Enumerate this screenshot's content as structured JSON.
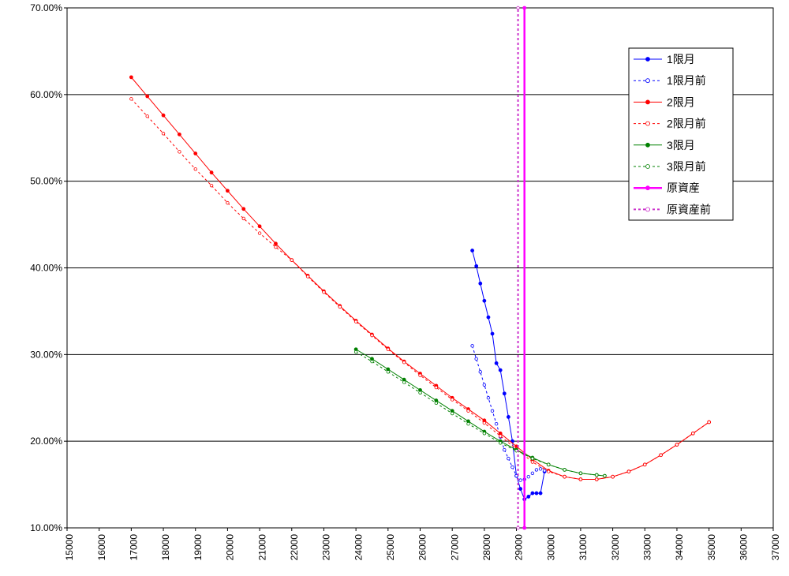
{
  "chart_data": {
    "type": "line",
    "xlim": [
      15000,
      37000
    ],
    "xticks": [
      15000,
      16000,
      17000,
      18000,
      19000,
      20000,
      21000,
      22000,
      23000,
      24000,
      25000,
      26000,
      27000,
      28000,
      29000,
      30000,
      31000,
      32000,
      33000,
      34000,
      35000,
      36000,
      37000
    ],
    "ylim": [
      10,
      70
    ],
    "yticks": [
      {
        "value": 10,
        "label": "10.00%"
      },
      {
        "value": 20,
        "label": "20.00%"
      },
      {
        "value": 30,
        "label": "30.00%"
      },
      {
        "value": 40,
        "label": "40.00%"
      },
      {
        "value": 50,
        "label": "50.00%"
      },
      {
        "value": 60,
        "label": "60.00%"
      },
      {
        "value": 70,
        "label": "70.00%"
      }
    ],
    "grid": true,
    "legend": "upper right",
    "series": [
      {
        "name": "1限月",
        "color": "#0000ff",
        "dashed": false,
        "marker": "filled",
        "width": 1,
        "x": [
          27625,
          27750,
          27875,
          28000,
          28125,
          28250,
          28375,
          28500,
          28625,
          28750,
          28875,
          29000,
          29125,
          29250,
          29375,
          29500,
          29625,
          29750,
          29875
        ],
        "values": [
          42.0,
          40.2,
          38.2,
          36.2,
          34.3,
          32.4,
          29.0,
          28.2,
          25.5,
          22.8,
          20.0,
          16.0,
          14.5,
          13.3,
          13.6,
          14.0,
          14.0,
          14.0,
          16.5
        ]
      },
      {
        "name": "1限月前",
        "color": "#0000ff",
        "dashed": true,
        "marker": "open",
        "width": 1,
        "x": [
          27625,
          27750,
          27875,
          28000,
          28125,
          28250,
          28375,
          28500,
          28625,
          28750,
          28875,
          29000,
          29125,
          29250,
          29375,
          29500,
          29625,
          29750,
          29875
        ],
        "values": [
          31.0,
          29.5,
          28.0,
          26.5,
          25.0,
          23.5,
          22.0,
          20.5,
          19.0,
          18.0,
          17.0,
          16.0,
          15.5,
          15.6,
          15.9,
          16.3,
          16.7,
          16.8,
          16.6
        ]
      },
      {
        "name": "2限月",
        "color": "#ff0000",
        "dashed": false,
        "marker": "filled",
        "width": 1,
        "x": [
          17000,
          17500,
          18000,
          18500,
          19000,
          19500,
          20000,
          20500,
          21000,
          21500,
          22000,
          22500,
          23000,
          23500,
          24000,
          24500,
          25000,
          25500,
          26000,
          26500,
          27000,
          27500,
          28000,
          28500,
          29000,
          29500,
          30000,
          30500,
          31000,
          31500,
          32000,
          32500,
          33000,
          33500,
          34000,
          34500,
          35000
        ],
        "values": [
          62.0,
          59.8,
          57.6,
          55.4,
          53.2,
          51.0,
          48.9,
          46.8,
          44.8,
          42.8,
          40.9,
          39.1,
          37.3,
          35.6,
          33.9,
          32.3,
          30.7,
          29.2,
          27.8,
          26.4,
          25.0,
          23.7,
          22.4,
          20.9,
          19.4,
          17.9,
          16.6,
          15.9,
          15.6,
          15.6,
          15.9,
          16.5,
          17.3,
          18.4,
          19.6,
          20.9,
          22.2
        ]
      },
      {
        "name": "2限月前",
        "color": "#ff0000",
        "dashed": true,
        "marker": "open",
        "width": 1,
        "x": [
          17000,
          17500,
          18000,
          18500,
          19000,
          19500,
          20000,
          20500,
          21000,
          21500,
          22000,
          22500,
          23000,
          23500,
          24000,
          24500,
          25000,
          25500,
          26000,
          26500,
          27000,
          27500,
          28000,
          28500,
          29000,
          29500,
          30000,
          30500,
          31000,
          31500,
          32000,
          32500,
          33000,
          33500,
          34000,
          34500,
          35000
        ],
        "values": [
          59.5,
          57.5,
          55.5,
          53.4,
          51.4,
          49.5,
          47.5,
          45.7,
          44.0,
          42.4,
          40.9,
          39.0,
          37.2,
          35.5,
          33.8,
          32.2,
          30.6,
          29.1,
          27.6,
          26.2,
          24.8,
          23.5,
          22.1,
          20.6,
          19.1,
          17.6,
          16.5,
          15.9,
          15.6,
          15.6,
          15.9,
          16.5,
          17.3,
          18.4,
          19.6,
          20.9,
          22.2
        ]
      },
      {
        "name": "3限月",
        "color": "#008000",
        "dashed": false,
        "marker": "filled",
        "width": 1,
        "x": [
          24000,
          24500,
          25000,
          25500,
          26000,
          26500,
          27000,
          27500,
          28000,
          28500,
          29000,
          29500,
          30000,
          30500,
          31000,
          31500,
          31750
        ],
        "values": [
          30.6,
          29.5,
          28.3,
          27.1,
          25.9,
          24.7,
          23.5,
          22.3,
          21.1,
          20.0,
          19.0,
          18.1,
          17.3,
          16.7,
          16.3,
          16.1,
          16.0
        ]
      },
      {
        "name": "3限月前",
        "color": "#008000",
        "dashed": true,
        "marker": "open",
        "width": 1,
        "x": [
          24000,
          24500,
          25000,
          25500,
          26000,
          26500,
          27000,
          27500,
          28000,
          28500,
          29000,
          29500,
          30000,
          30500,
          31000,
          31500,
          31750
        ],
        "values": [
          30.3,
          29.2,
          28.0,
          26.8,
          25.6,
          24.4,
          23.2,
          22.0,
          20.9,
          19.8,
          18.9,
          18.0,
          17.3,
          16.7,
          16.3,
          16.1,
          16.0
        ]
      },
      {
        "name": "原資産",
        "color": "#ff00ff",
        "dashed": false,
        "marker": "filled",
        "width": 2.5,
        "x": [
          29250,
          29250
        ],
        "values": [
          10,
          70
        ]
      },
      {
        "name": "原資産前",
        "color": "#cc33cc",
        "dashed": true,
        "marker": "open",
        "width": 2,
        "x": [
          29050,
          29050
        ],
        "values": [
          10,
          70
        ]
      }
    ]
  }
}
